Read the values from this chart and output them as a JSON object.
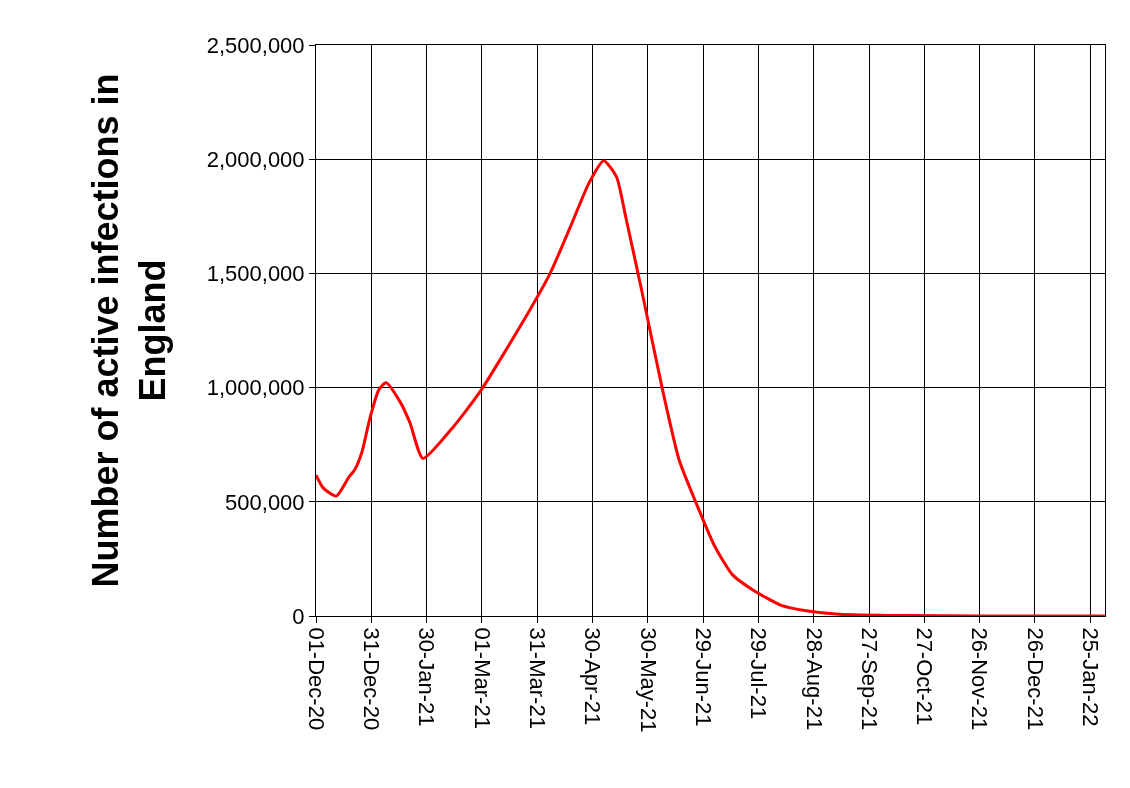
{
  "chart_data": {
    "type": "line",
    "ylabel": "Number of active infections in England",
    "x": [
      "2020-12-01",
      "2020-12-05",
      "2020-12-12",
      "2020-12-19",
      "2020-12-22",
      "2020-12-26",
      "2020-12-30",
      "2021-01-04",
      "2021-01-08",
      "2021-01-16",
      "2021-01-21",
      "2021-01-28",
      "2021-02-12",
      "2021-02-28",
      "2021-03-27",
      "2021-04-07",
      "2021-04-18",
      "2021-04-28",
      "2021-05-06",
      "2021-05-13",
      "2021-05-18",
      "2021-05-27",
      "2021-06-07",
      "2021-06-16",
      "2021-06-26",
      "2021-07-05",
      "2021-07-15",
      "2021-07-26",
      "2021-08-10",
      "2021-08-24",
      "2021-09-11",
      "2021-10-17",
      "2021-11-26",
      "2022-02-02"
    ],
    "series": [
      {
        "color": "#ff0000",
        "values": [
          617000,
          560000,
          525000,
          610000,
          640000,
          720000,
          858000,
          989000,
          1021000,
          932000,
          845000,
          690000,
          814000,
          982000,
          1340000,
          1500000,
          1704000,
          1894000,
          1993000,
          1923000,
          1748000,
          1413000,
          990000,
          683000,
          479000,
          310000,
          180000,
          114000,
          48000,
          23000,
          8000,
          2000,
          0,
          0
        ]
      }
    ],
    "xlim": [
      "2020-12-01",
      "2022-02-02"
    ],
    "xticks": [
      {
        "value": "2020-12-01",
        "label": "01-Dec-20"
      },
      {
        "value": "2020-12-31",
        "label": "31-Dec-20"
      },
      {
        "value": "2021-01-30",
        "label": "30-Jan-21"
      },
      {
        "value": "2021-03-01",
        "label": "01-Mar-21"
      },
      {
        "value": "2021-03-31",
        "label": "31-Mar-21"
      },
      {
        "value": "2021-04-30",
        "label": "30-Apr-21"
      },
      {
        "value": "2021-05-30",
        "label": "30-May-21"
      },
      {
        "value": "2021-06-29",
        "label": "29-Jun-21"
      },
      {
        "value": "2021-07-29",
        "label": "29-Jul-21"
      },
      {
        "value": "2021-08-28",
        "label": "28-Aug-21"
      },
      {
        "value": "2021-09-27",
        "label": "27-Sep-21"
      },
      {
        "value": "2021-10-27",
        "label": "27-Oct-21"
      },
      {
        "value": "2021-11-26",
        "label": "26-Nov-21"
      },
      {
        "value": "2021-12-26",
        "label": "26-Dec-21"
      },
      {
        "value": "2022-01-25",
        "label": "25-Jan-22"
      }
    ],
    "ylim": [
      0,
      2500000
    ],
    "yticks": [
      0,
      {
        "value": 500000,
        "label": "500,000"
      },
      {
        "value": 1000000,
        "label": "1,000,000"
      },
      {
        "value": 1500000,
        "label": "1,500,000"
      },
      {
        "value": 2000000,
        "label": "2,000,000"
      },
      {
        "value": 2500000,
        "label": "2,500,000"
      }
    ],
    "grid": true,
    "marker": "none",
    "line_style": "solid"
  }
}
